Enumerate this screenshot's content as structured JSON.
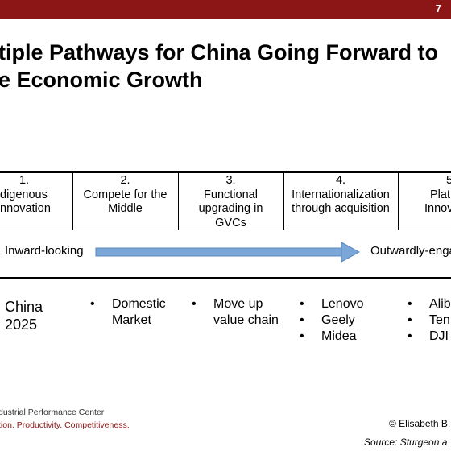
{
  "page_number": "7",
  "title_lines": [
    "tiple Pathways for China Going Forward to",
    "e Economic Growth"
  ],
  "table": {
    "columns": [
      {
        "number": "1.",
        "lines": [
          "digenous",
          "nnovation"
        ]
      },
      {
        "number": "2.",
        "lines": [
          "Compete for the",
          "Middle"
        ]
      },
      {
        "number": "3.",
        "lines": [
          "Functional",
          "upgrading in",
          "GVCs"
        ]
      },
      {
        "number": "4.",
        "lines": [
          "Internationalization",
          "through acquisition"
        ]
      },
      {
        "number": "5",
        "lines": [
          "Plat",
          "Innov"
        ]
      }
    ]
  },
  "arrow": {
    "left_label": "Inward-looking",
    "right_label": "Outwardly-enga",
    "color": "#7aa7d8"
  },
  "examples": {
    "col1": [
      "China",
      "2025"
    ],
    "col2": [
      "Domestic Market"
    ],
    "col3": [
      "Move up value chain"
    ],
    "col4": [
      "Lenovo",
      "Geely",
      "Midea"
    ],
    "col5": [
      "Alib",
      "Ten",
      "DJI"
    ]
  },
  "footer": {
    "org": "dustrial Performance Center",
    "tagline": "tion. Productivity. Competitiveness.",
    "copyright": "© Elisabeth B. R",
    "source": "Source: Sturgeon a"
  },
  "colors": {
    "brand": "#8c1515",
    "arrow": "#7aa7d8"
  }
}
